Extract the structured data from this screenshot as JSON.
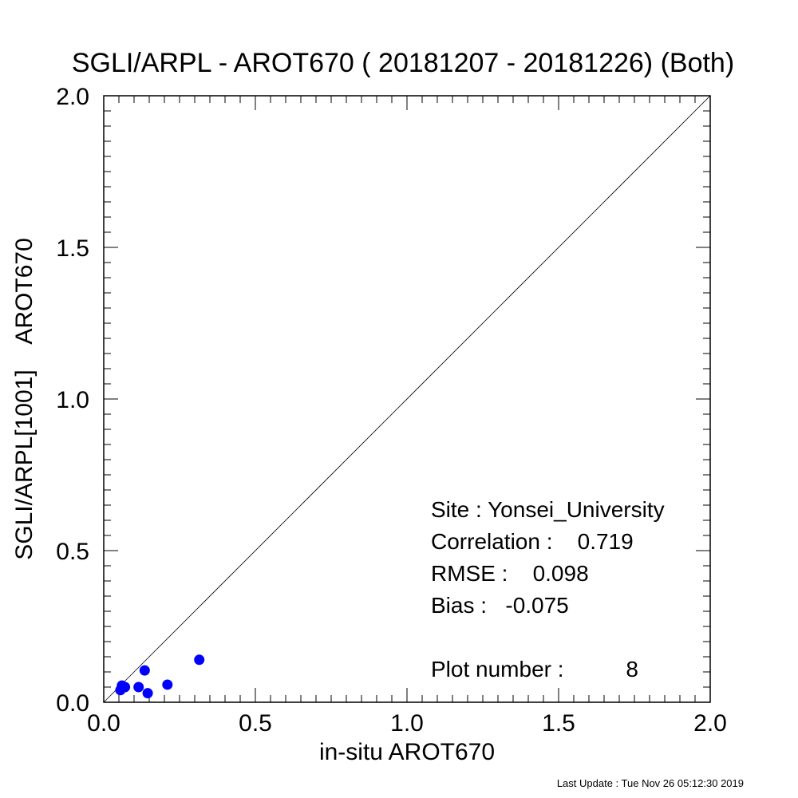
{
  "chart_data": {
    "type": "scatter",
    "title": "SGLI/ARPL - AROT670 ( 20181207 - 20181226) (Both)",
    "xlabel": "in-situ AROT670",
    "ylabel": "SGLI/ARPL[1001]    AROT670",
    "xlim": [
      0.0,
      2.0
    ],
    "ylim": [
      0.0,
      2.0
    ],
    "xticks": [
      "0.0",
      "0.5",
      "1.0",
      "1.5",
      "2.0"
    ],
    "yticks": [
      "0.0",
      "0.5",
      "1.0",
      "1.5",
      "2.0"
    ],
    "grid": false,
    "reference_line": "1:1",
    "point_color": "#0000ff",
    "points": [
      {
        "x": 0.055,
        "y": 0.04
      },
      {
        "x": 0.06,
        "y": 0.055
      },
      {
        "x": 0.07,
        "y": 0.05
      },
      {
        "x": 0.115,
        "y": 0.05
      },
      {
        "x": 0.135,
        "y": 0.105
      },
      {
        "x": 0.145,
        "y": 0.03
      },
      {
        "x": 0.21,
        "y": 0.058
      },
      {
        "x": 0.315,
        "y": 0.14
      }
    ],
    "stats": {
      "site": "Site : Yonsei_University",
      "correlation": "Correlation :    0.719",
      "rmse": "RMSE :    0.098",
      "bias": "Bias :   -0.075",
      "plot_number": "Plot number :          8"
    }
  },
  "footer": "Last Update : Tue Nov 26 05:12:30 2019"
}
